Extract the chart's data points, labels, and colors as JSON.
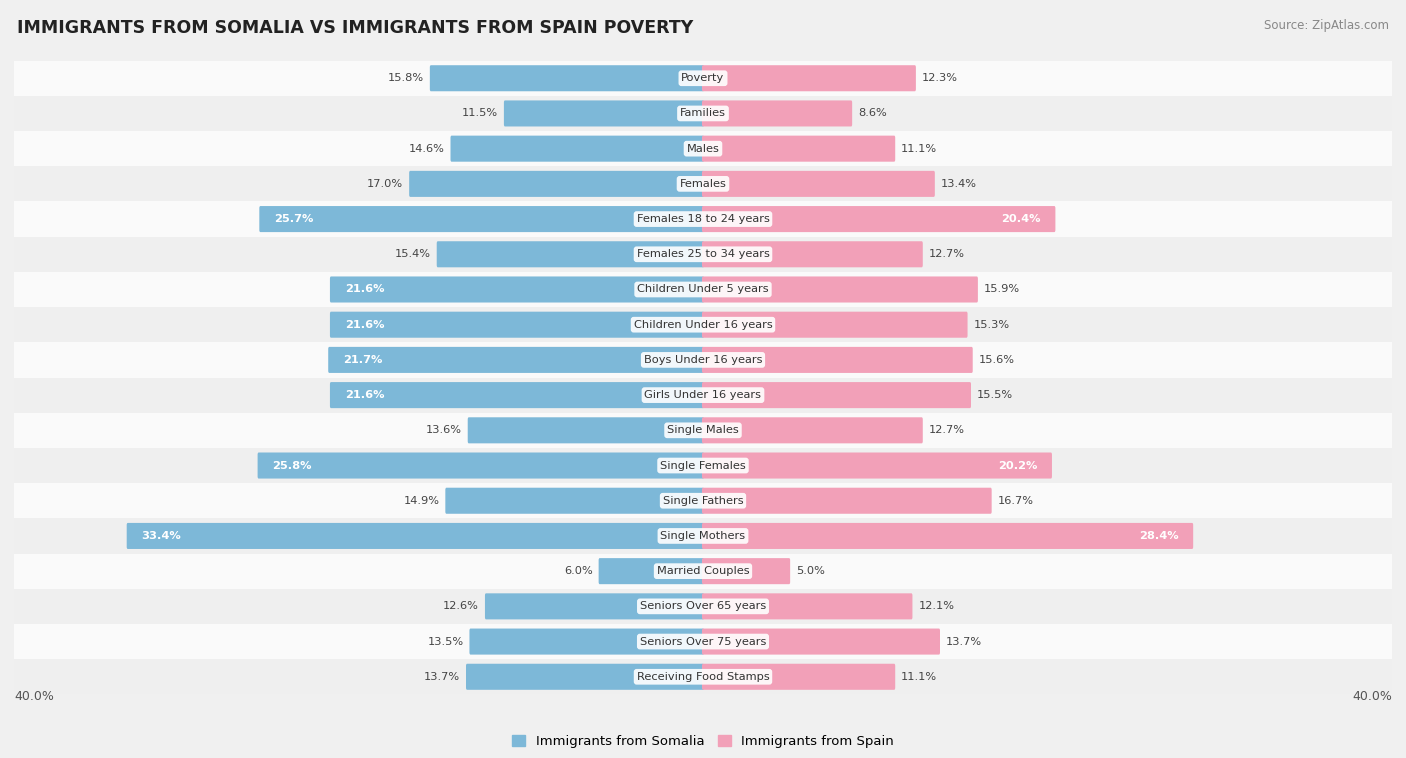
{
  "title": "IMMIGRANTS FROM SOMALIA VS IMMIGRANTS FROM SPAIN POVERTY",
  "source": "Source: ZipAtlas.com",
  "categories": [
    "Poverty",
    "Families",
    "Males",
    "Females",
    "Females 18 to 24 years",
    "Females 25 to 34 years",
    "Children Under 5 years",
    "Children Under 16 years",
    "Boys Under 16 years",
    "Girls Under 16 years",
    "Single Males",
    "Single Females",
    "Single Fathers",
    "Single Mothers",
    "Married Couples",
    "Seniors Over 65 years",
    "Seniors Over 75 years",
    "Receiving Food Stamps"
  ],
  "somalia_values": [
    15.8,
    11.5,
    14.6,
    17.0,
    25.7,
    15.4,
    21.6,
    21.6,
    21.7,
    21.6,
    13.6,
    25.8,
    14.9,
    33.4,
    6.0,
    12.6,
    13.5,
    13.7
  ],
  "spain_values": [
    12.3,
    8.6,
    11.1,
    13.4,
    20.4,
    12.7,
    15.9,
    15.3,
    15.6,
    15.5,
    12.7,
    20.2,
    16.7,
    28.4,
    5.0,
    12.1,
    13.7,
    11.1
  ],
  "somalia_color": "#7db8d8",
  "spain_color": "#f2a0b8",
  "somalia_label": "Immigrants from Somalia",
  "spain_label": "Immigrants from Spain",
  "xlim": 40.0,
  "bg_color": "#f0f0f0",
  "row_colors": [
    "#fafafa",
    "#efefef"
  ]
}
